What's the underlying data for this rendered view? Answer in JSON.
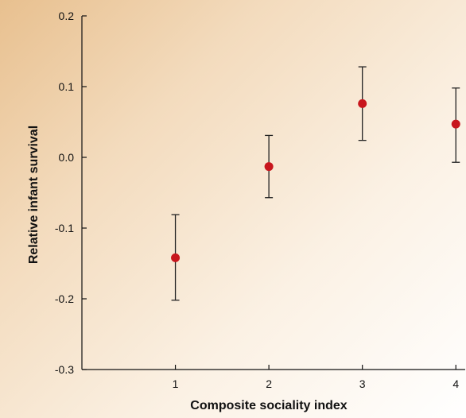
{
  "chart_data": {
    "type": "scatter",
    "title": "",
    "xlabel": "Composite sociality index",
    "ylabel": "Relative infant survival",
    "x": [
      1,
      2,
      3,
      4
    ],
    "y": [
      -0.142,
      -0.013,
      0.076,
      0.047
    ],
    "error_low": [
      -0.202,
      -0.057,
      0.024,
      -0.007
    ],
    "error_high": [
      -0.081,
      0.031,
      0.128,
      0.098
    ],
    "xticks": [
      1,
      2,
      3,
      4
    ],
    "xtick_labels": [
      "1",
      "2",
      "3",
      "4"
    ],
    "yticks": [
      -0.3,
      -0.2,
      -0.1,
      0.0,
      0.1,
      0.2
    ],
    "ytick_labels": [
      "-0.3",
      "-0.2",
      "-0.1",
      "0.0",
      "0.1",
      "0.2"
    ],
    "xlim": [
      0,
      4.1
    ],
    "ylim": [
      -0.3,
      0.2
    ],
    "grid": false,
    "legend": "none",
    "colors": {
      "marker": "#c8161d",
      "errorbar": "#222222",
      "axis": "#111111"
    }
  }
}
